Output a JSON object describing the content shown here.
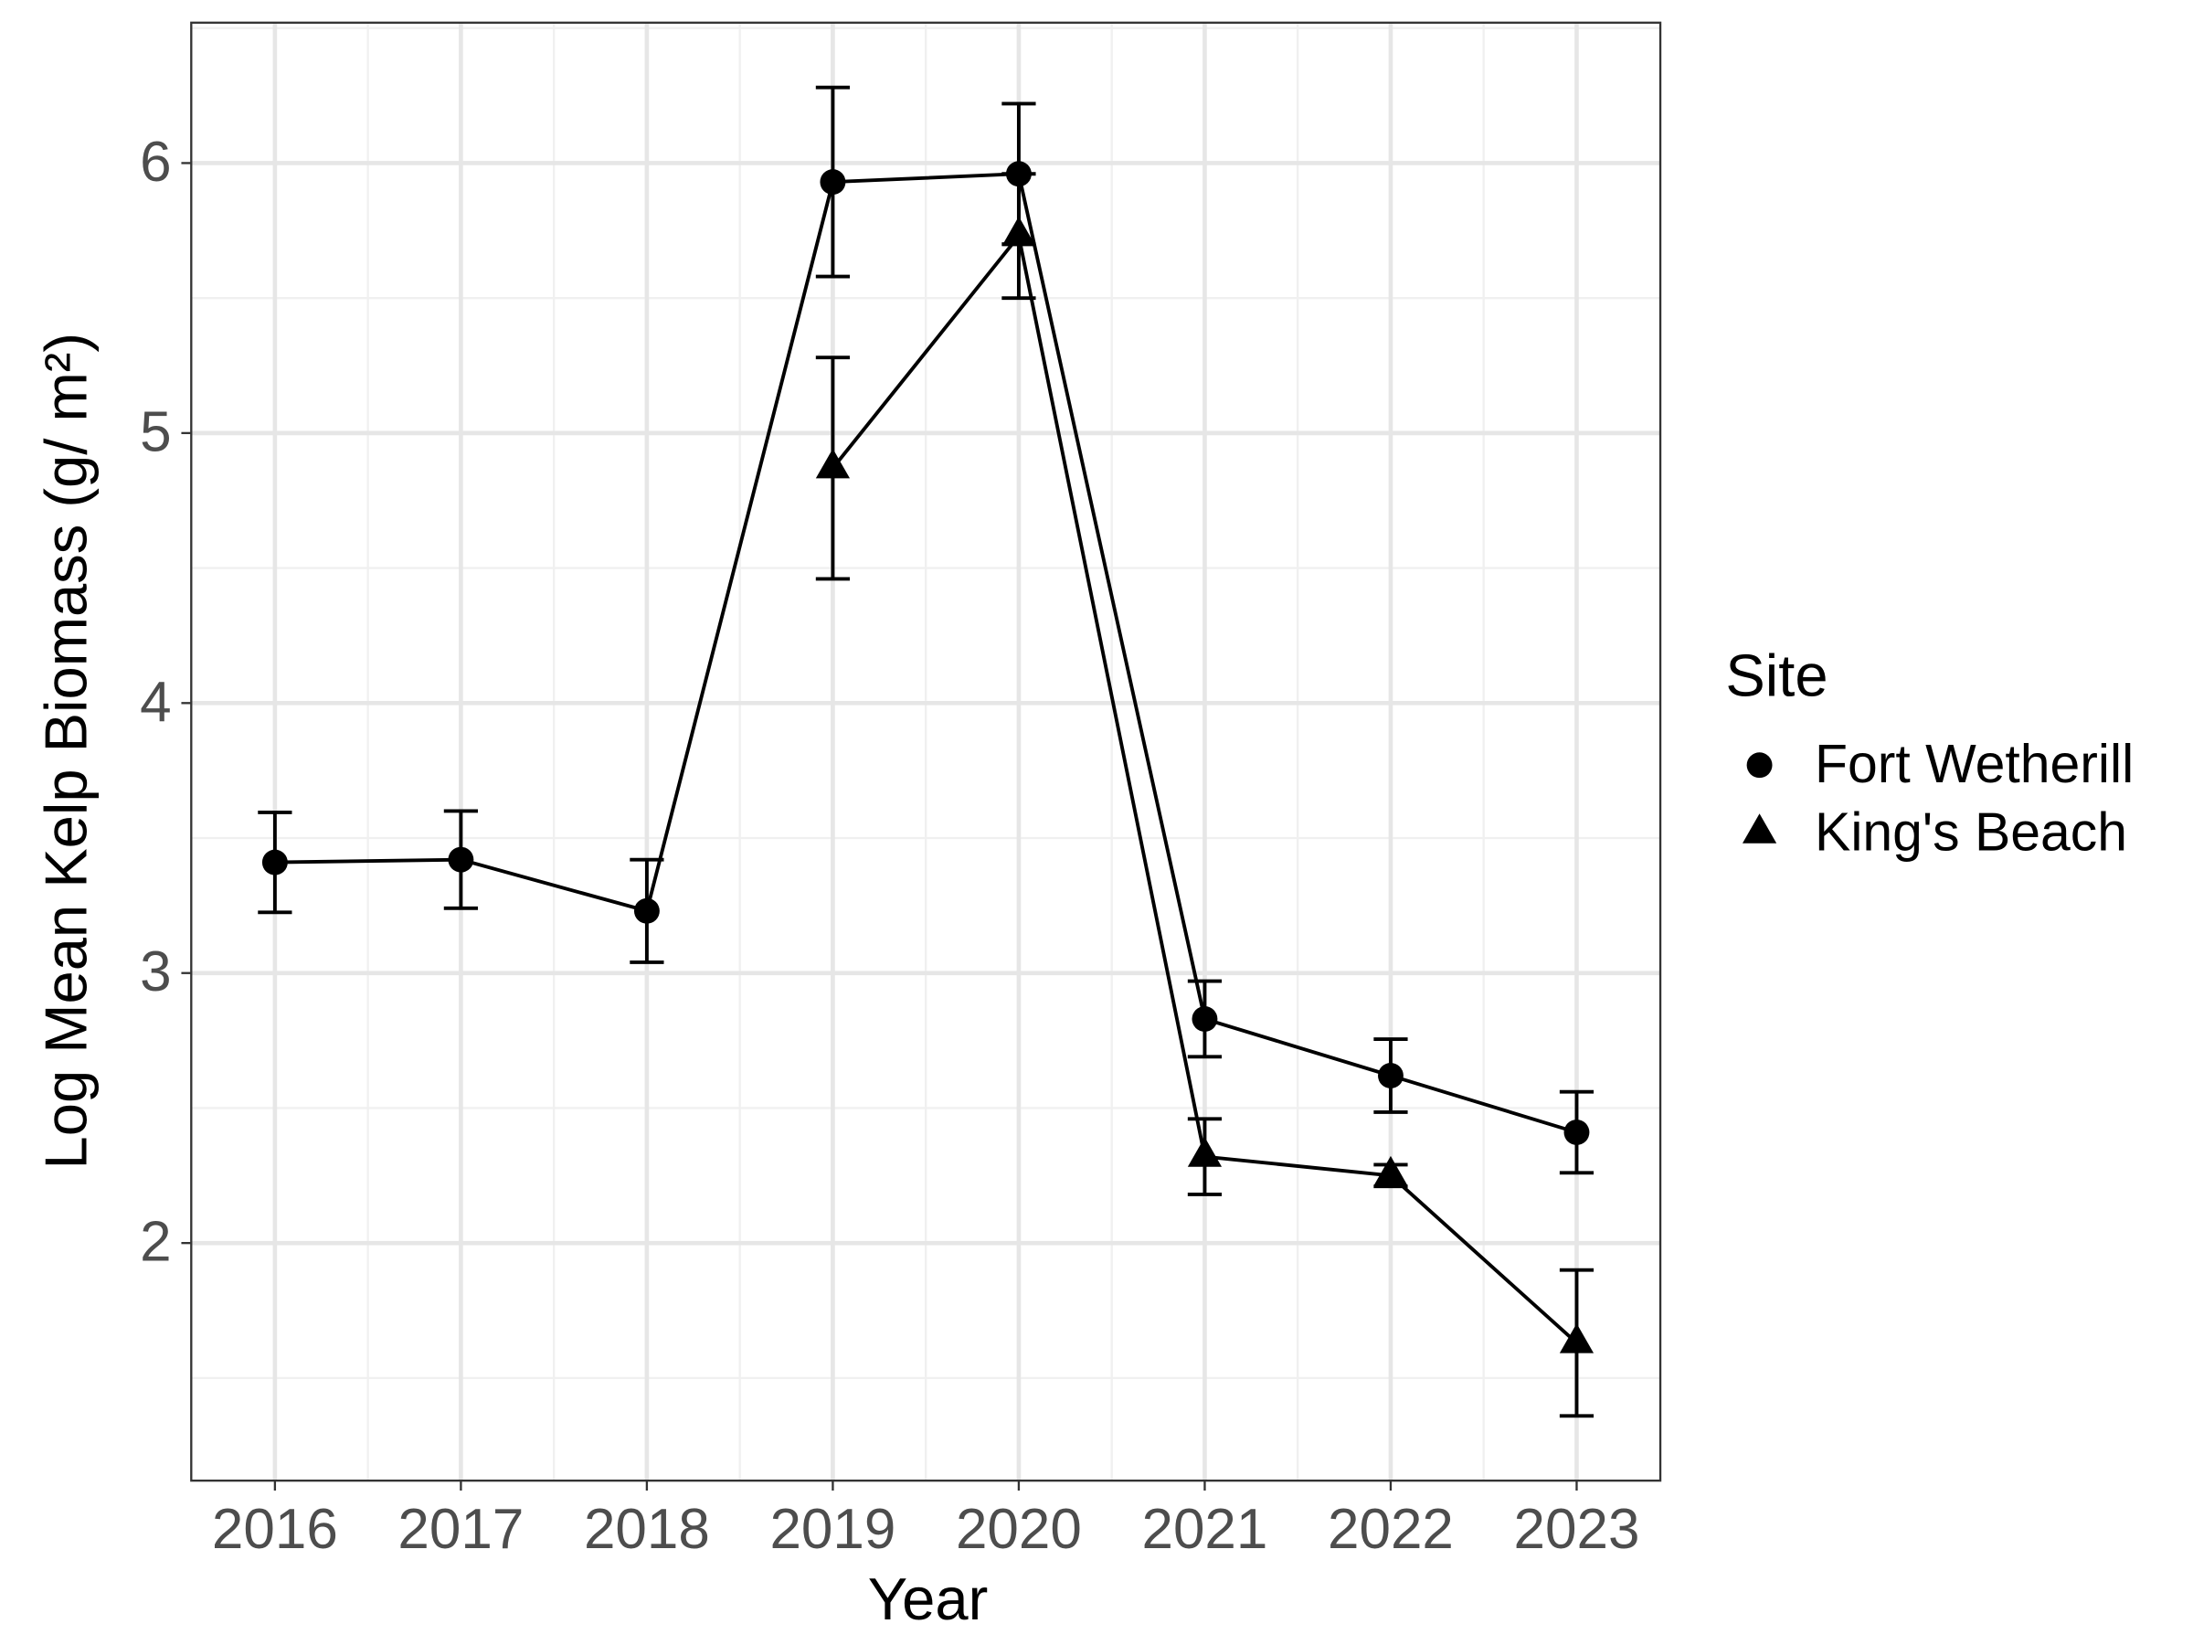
{
  "chart_data": {
    "type": "line",
    "x_label": "Year",
    "y_label": "Log Mean Kelp Biomass (g/ m²)",
    "legend_title": "Site",
    "x": [
      2016,
      2017,
      2018,
      2019,
      2020,
      2021,
      2022,
      2023
    ],
    "series": [
      {
        "name": "Fort Wetherill",
        "color": "#000000",
        "marker": "circle",
        "values": [
          3.41,
          3.42,
          3.23,
          5.93,
          5.96,
          2.83,
          2.62,
          2.41
        ],
        "errors": [
          0.185,
          0.18,
          0.19,
          0.35,
          0.26,
          0.14,
          0.135,
          0.15
        ]
      },
      {
        "name": "King's Beach",
        "color": "#000000",
        "marker": "triangle",
        "values": [
          null,
          null,
          null,
          4.87,
          5.73,
          2.32,
          2.25,
          1.63
        ],
        "errors": [
          null,
          null,
          null,
          0.41,
          0.23,
          0.14,
          0.04,
          0.27
        ]
      }
    ],
    "xlim": [
      2015.55,
      2023.45
    ],
    "xticks": [
      2016,
      2017,
      2018,
      2019,
      2020,
      2021,
      2022,
      2023
    ],
    "xminor": [
      2016.5,
      2017.5,
      2018.5,
      2019.5,
      2020.5,
      2021.5,
      2022.5
    ],
    "ylim": [
      1.12,
      6.52
    ],
    "yticks": [
      2,
      3,
      4,
      5,
      6
    ],
    "yminor": [
      1.5,
      2.5,
      3.5,
      4.5,
      5.5,
      6.5
    ],
    "grid": true,
    "legend": "right"
  }
}
